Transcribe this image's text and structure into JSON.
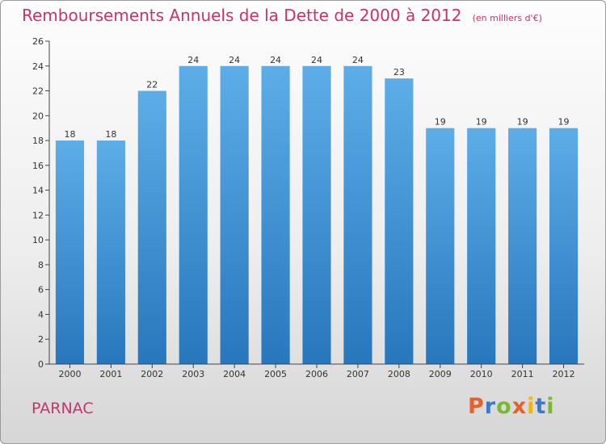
{
  "chart_data": {
    "type": "bar",
    "title": "Remboursements Annuels de la Dette de 2000 à 2012",
    "unit": "(en milliers d'€)",
    "categories": [
      "2000",
      "2001",
      "2002",
      "2003",
      "2004",
      "2005",
      "2006",
      "2007",
      "2008",
      "2009",
      "2010",
      "2011",
      "2012"
    ],
    "values": [
      18,
      18,
      22,
      24,
      24,
      24,
      24,
      24,
      23,
      19,
      19,
      19,
      19
    ],
    "xlabel": "",
    "ylabel": "",
    "ylim": [
      0,
      26
    ],
    "yticks": [
      0,
      2,
      4,
      6,
      8,
      10,
      12,
      14,
      16,
      18,
      20,
      22,
      24,
      26
    ],
    "grid": false,
    "legend": "none",
    "bar_color": "#4a9ee0"
  },
  "footer": {
    "commune": "PARNAC",
    "logo_letters": [
      {
        "ch": "P",
        "color": "#e8602a"
      },
      {
        "ch": "r",
        "color": "#3b78c9"
      },
      {
        "ch": "o",
        "color": "#7bb832"
      },
      {
        "ch": "x",
        "color": "#e8602a"
      },
      {
        "ch": "i",
        "color": "#f0b417"
      },
      {
        "ch": "t",
        "color": "#3b78c9"
      },
      {
        "ch": "i",
        "color": "#7bb832"
      }
    ]
  },
  "colors": {
    "title": "#c8336b",
    "axis": "#444444"
  }
}
